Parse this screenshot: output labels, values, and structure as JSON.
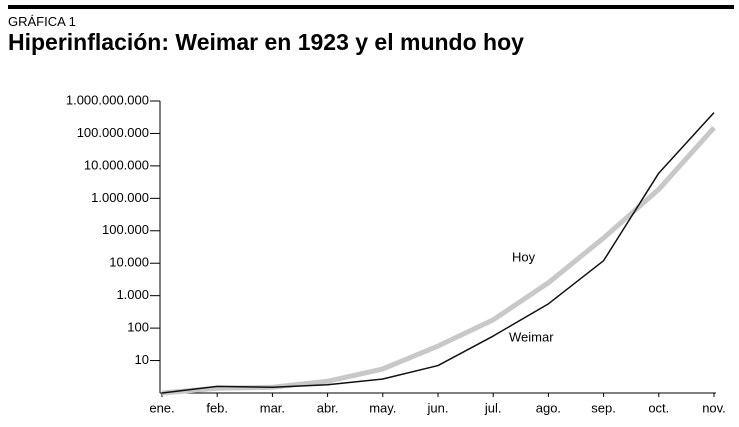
{
  "header": {
    "kicker": "GRÁFICA 1"
  },
  "chart_data": {
    "type": "line",
    "title": "Hiperinflación: Weimar en 1923 y el mundo hoy",
    "categories": [
      "ene.",
      "feb.",
      "mar.",
      "abr.",
      "may.",
      "jun.",
      "jul.",
      "ago.",
      "sep.",
      "oct.",
      "nov."
    ],
    "series": [
      {
        "name": "Weimar",
        "color": "#111111",
        "values": [
          1,
          1.6,
          1.5,
          1.8,
          2.7,
          7,
          57,
          560,
          12000,
          6000000,
          440000000
        ]
      },
      {
        "name": "Hoy",
        "color": "#c8c8c8",
        "values": [
          1,
          1.4,
          1.5,
          2.3,
          5.5,
          28,
          180,
          2500,
          60000,
          1900000,
          150000000
        ]
      }
    ],
    "log_scale": true,
    "ylim": [
      1,
      1000000000
    ],
    "yticks": [
      10,
      100,
      {
        "value": 1000,
        "label": "1.000"
      },
      {
        "value": 10000,
        "label": "10.000"
      },
      {
        "value": 100000,
        "label": "100.000"
      },
      {
        "value": 1000000,
        "label": "1.000.000"
      },
      {
        "value": 10000000,
        "label": "10.000.000"
      },
      {
        "value": 100000000,
        "label": "100.000.000"
      },
      {
        "value": 1000000000,
        "label": "1.000.000.000"
      }
    ]
  }
}
